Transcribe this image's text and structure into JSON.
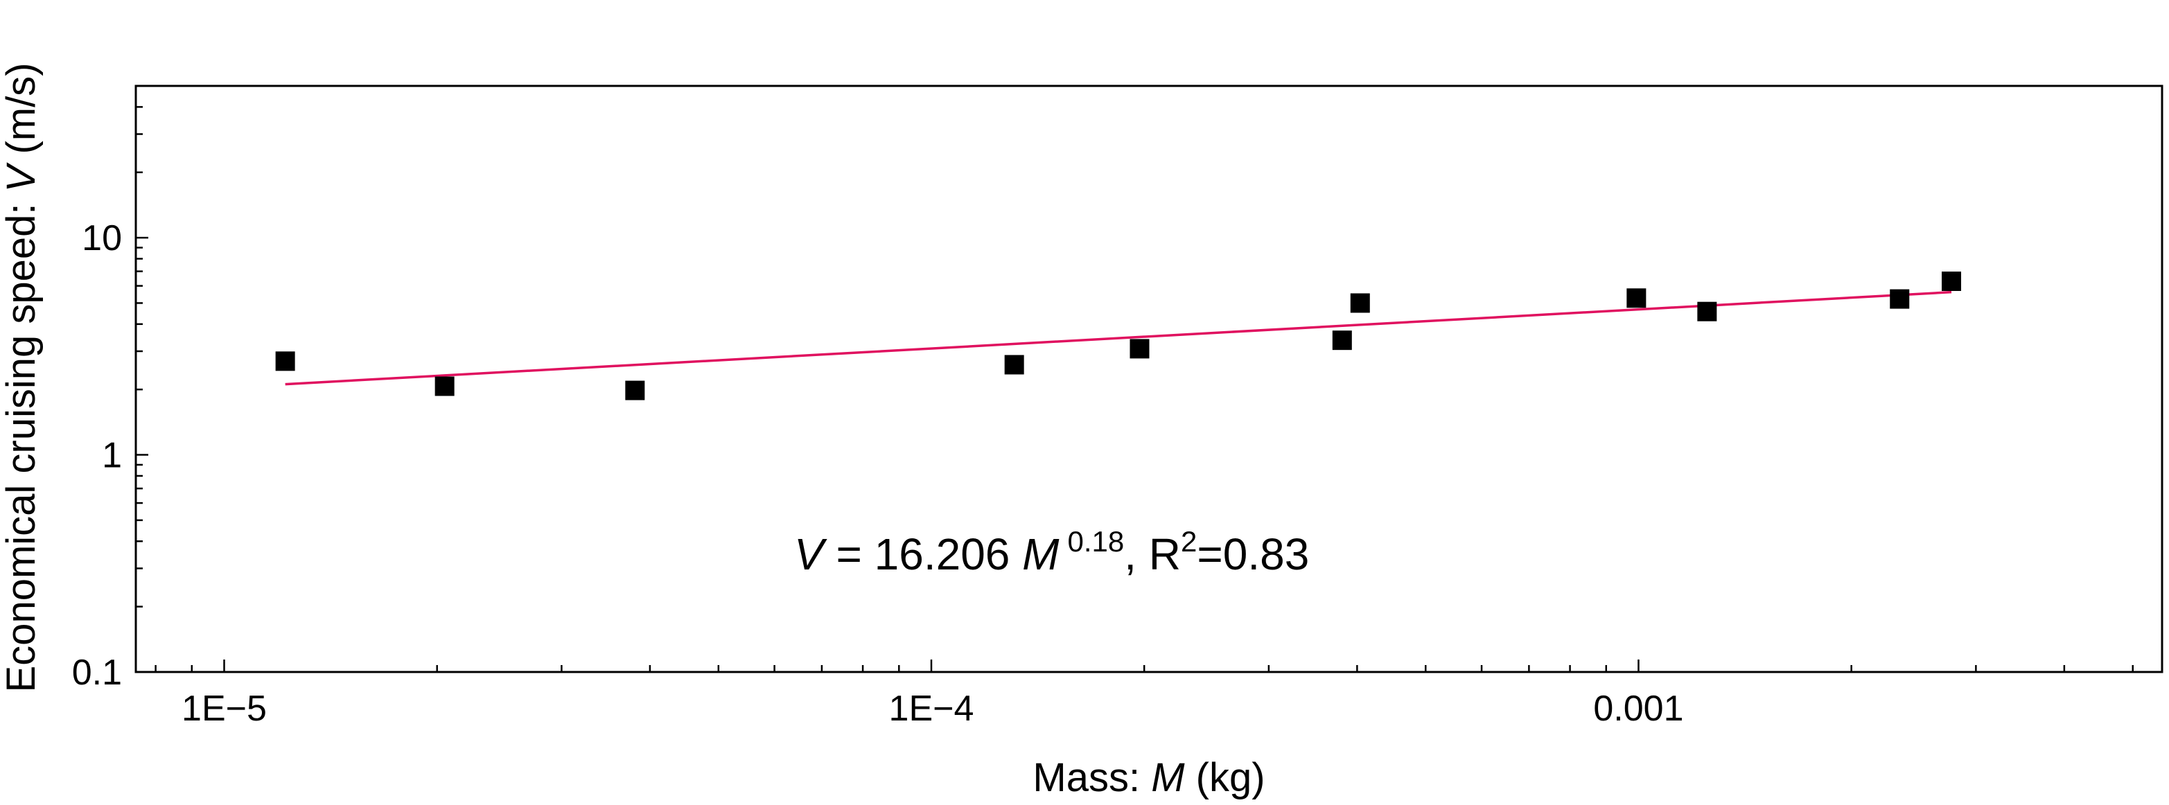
{
  "chart_data": {
    "type": "scatter",
    "xlabel": {
      "prefix": "Mass: ",
      "var": "M",
      "suffix": " (kg)"
    },
    "ylabel": {
      "prefix": "Economical cruising speed: ",
      "var": "V",
      "suffix": " (m/s)"
    },
    "xscale": "log",
    "yscale": "log",
    "xlim": [
      7.5e-06,
      0.0055
    ],
    "ylim": [
      0.1,
      50
    ],
    "x_ticks": [
      {
        "value": 1e-05,
        "label": "1E−5"
      },
      {
        "value": 0.0001,
        "label": "1E−4"
      },
      {
        "value": 0.001,
        "label": "0.001"
      }
    ],
    "y_ticks": [
      {
        "value": 0.1,
        "label": "0.1"
      },
      {
        "value": 1,
        "label": "1"
      },
      {
        "value": 10,
        "label": "10"
      }
    ],
    "series": [
      {
        "marker": "square",
        "color": "#000000",
        "points": [
          [
            1.22e-05,
            2.7
          ],
          [
            2.05e-05,
            2.07
          ],
          [
            3.81e-05,
            1.98
          ],
          [
            0.000131,
            2.6
          ],
          [
            0.000197,
            3.08
          ],
          [
            0.000381,
            3.37
          ],
          [
            0.000404,
            5.0
          ],
          [
            0.000993,
            5.27
          ],
          [
            0.00125,
            4.57
          ],
          [
            0.00234,
            5.22
          ],
          [
            0.00277,
            6.3
          ]
        ]
      }
    ],
    "fit": {
      "coefficient": 16.206,
      "exponent": 0.18,
      "x_range": [
        1.22e-05,
        0.00277
      ],
      "color": "#e0115f"
    },
    "annotation": {
      "color": "#ee1111",
      "v": "V",
      "eq": " = 16.206 ",
      "m": "M",
      "exp": "0.18",
      "sep": ",  R",
      "r_sup": "2",
      "r2": "=0.83"
    },
    "grid": false
  }
}
